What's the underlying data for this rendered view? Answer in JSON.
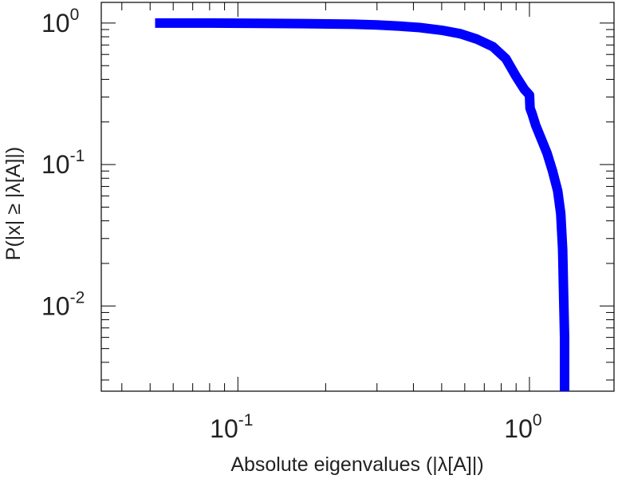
{
  "chart_data": {
    "type": "line",
    "xlabel": "Absolute eigenvalues (|λ[A]|)",
    "ylabel": "P(|x| ≥ |λ[A]|)",
    "xscale": "log",
    "yscale": "log",
    "xlim": [
      0.034,
      1.95
    ],
    "ylim": [
      0.0025,
      1.4
    ],
    "grid": false,
    "legend": "none",
    "line_color": "#0000ff",
    "x_ticks": [
      {
        "value": 0.1,
        "base": "10",
        "exp": "-1"
      },
      {
        "value": 1.0,
        "base": "10",
        "exp": "0"
      }
    ],
    "y_ticks": [
      {
        "value": 1.0,
        "base": "10",
        "exp": "0"
      },
      {
        "value": 0.1,
        "base": "10",
        "exp": "-1"
      },
      {
        "value": 0.01,
        "base": "10",
        "exp": "-2"
      }
    ],
    "series": [
      {
        "x": [
          0.052,
          0.08,
          0.12,
          0.18,
          0.25,
          0.3,
          0.36,
          0.42,
          0.5,
          0.58,
          0.66,
          0.75,
          0.83,
          0.9,
          0.96,
          1.0,
          1.005,
          1.02,
          1.05,
          1.1,
          1.15,
          1.2,
          1.25,
          1.28,
          1.3,
          1.31,
          1.32,
          1.32
        ],
        "y": [
          1.0,
          1.0,
          0.995,
          0.99,
          0.98,
          0.97,
          0.95,
          0.93,
          0.89,
          0.84,
          0.77,
          0.68,
          0.56,
          0.42,
          0.34,
          0.31,
          0.25,
          0.23,
          0.19,
          0.15,
          0.12,
          0.09,
          0.065,
          0.045,
          0.025,
          0.012,
          0.006,
          0.0025
        ]
      }
    ]
  }
}
